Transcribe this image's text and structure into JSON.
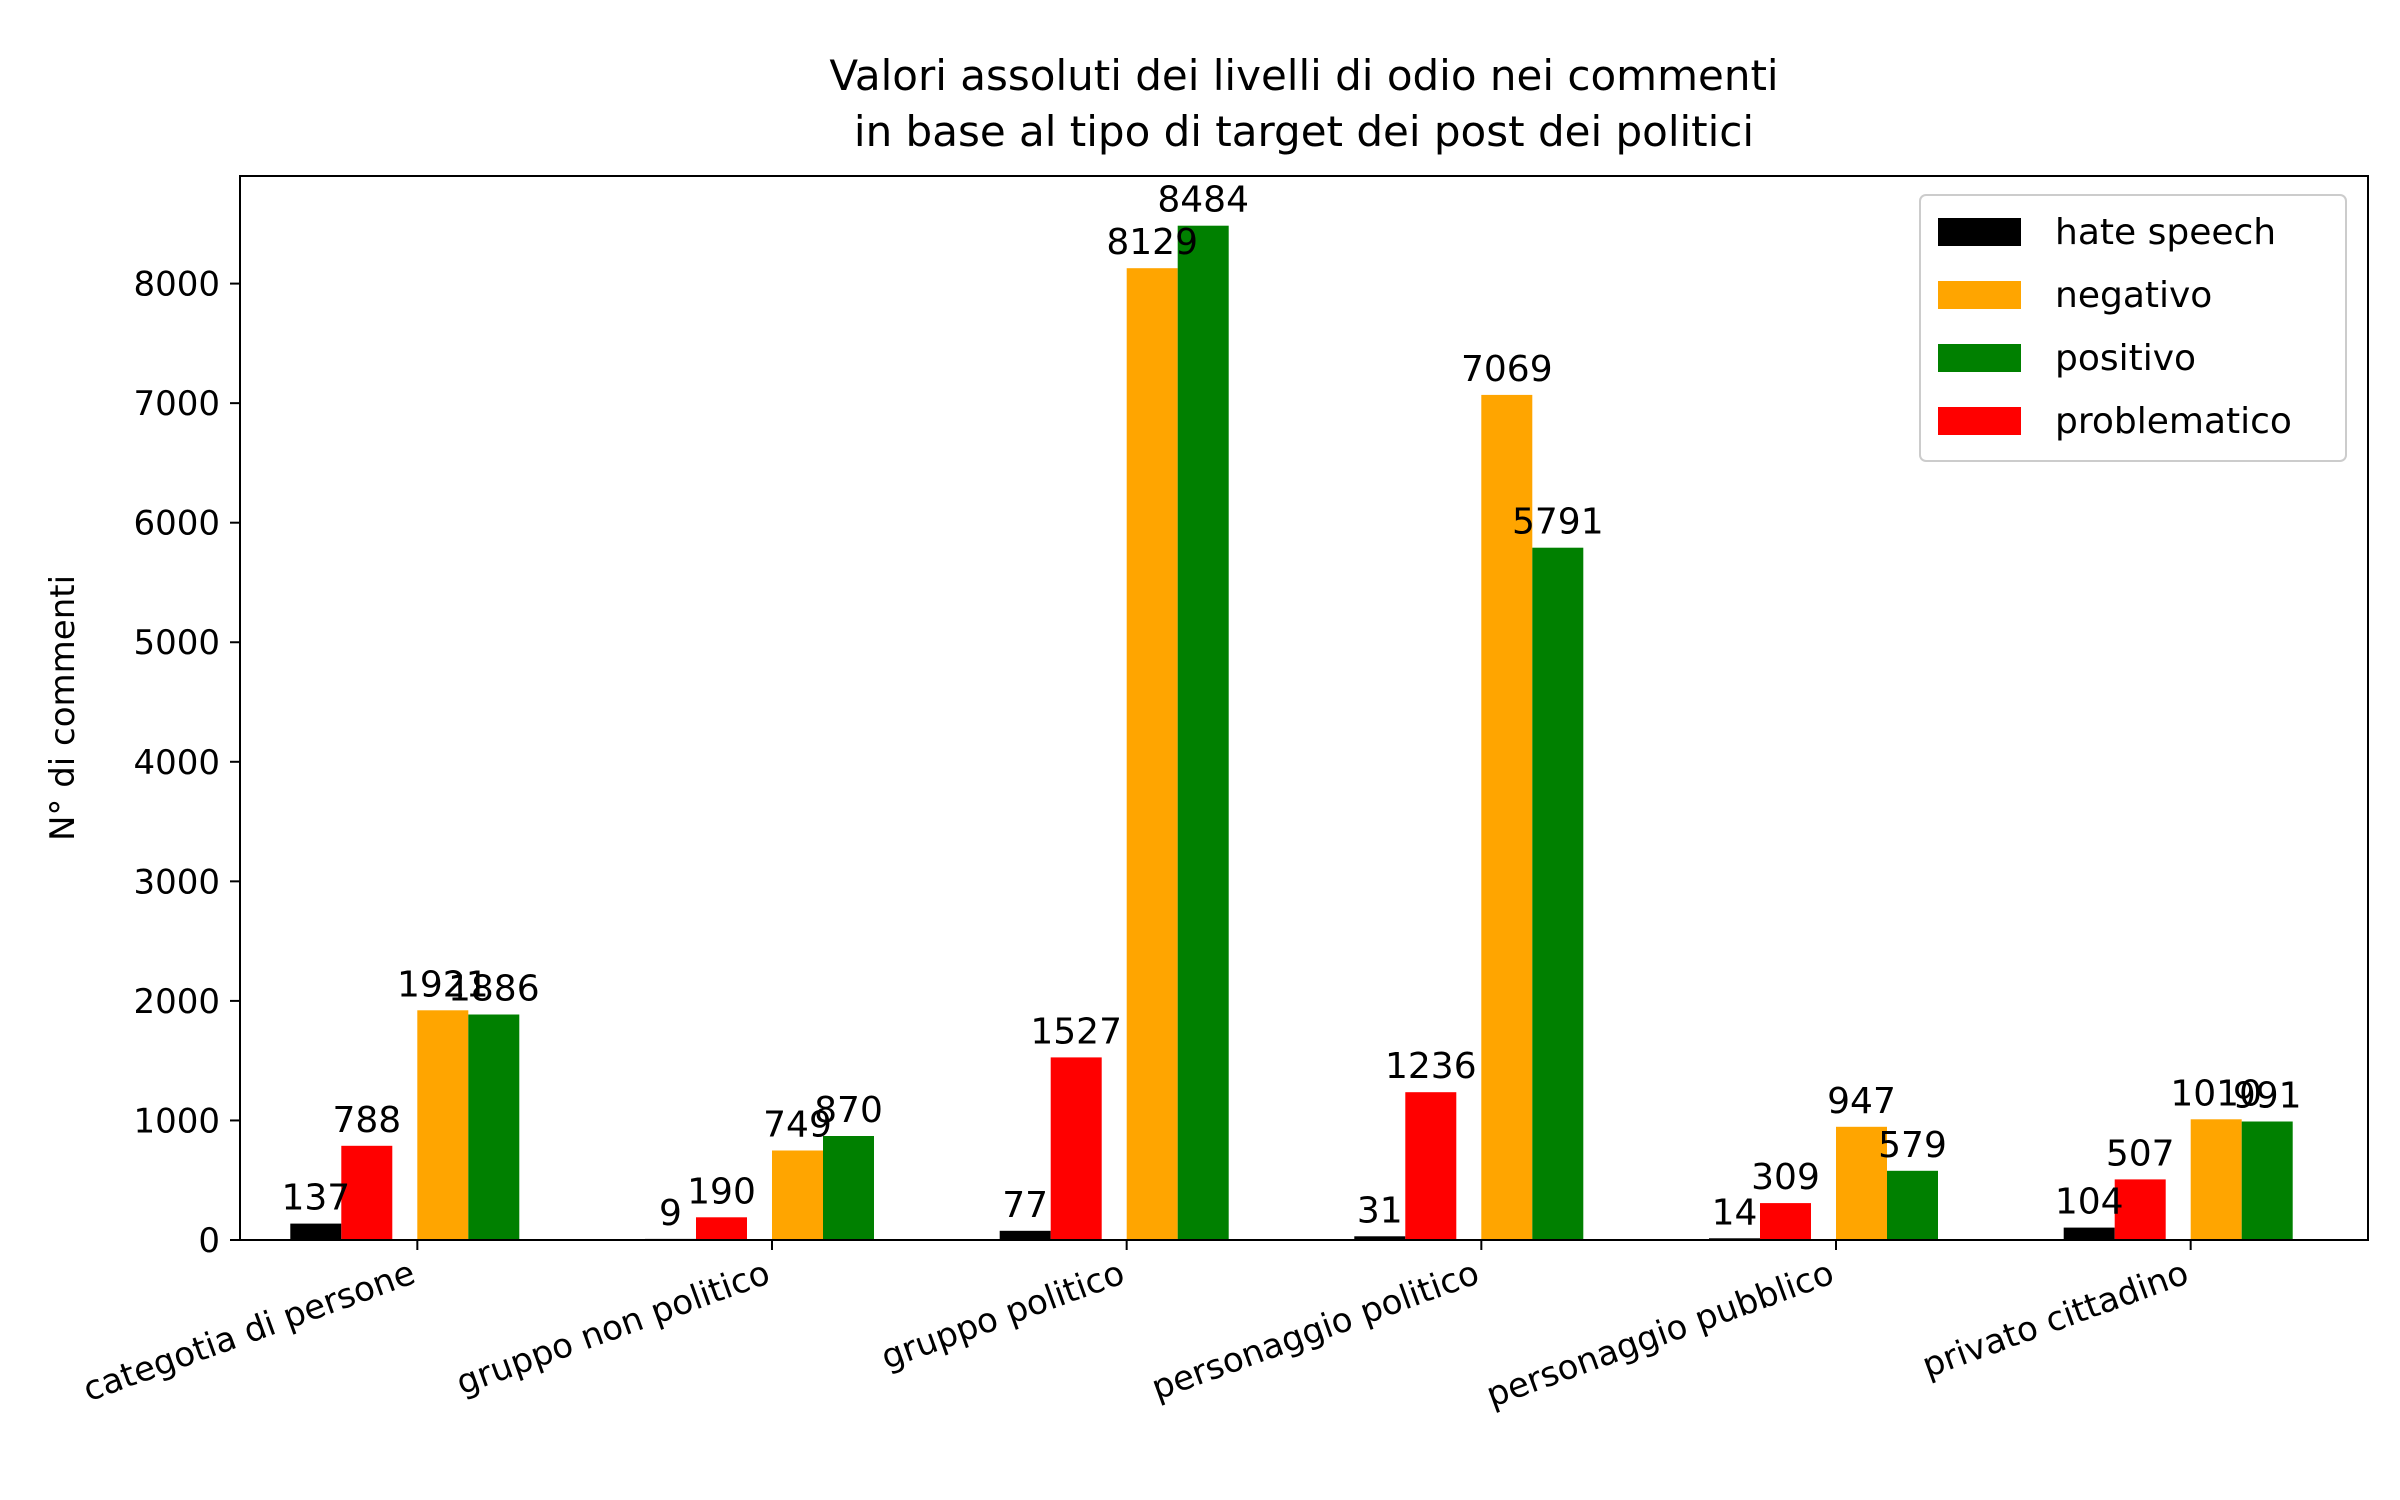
{
  "chart_data": {
    "type": "bar",
    "title_lines": [
      "Valori assoluti dei livelli di odio nei commenti",
      "in base al tipo di target dei post dei politici"
    ],
    "xlabel": "",
    "ylabel": "N° di commenti",
    "ylim": [
      0,
      8900
    ],
    "yticks": [
      0,
      1000,
      2000,
      3000,
      4000,
      5000,
      6000,
      7000,
      8000
    ],
    "grid": false,
    "legend_position": "top-right",
    "categories": [
      "categotia di persone",
      "gruppo non politico",
      "gruppo politico",
      "personaggio politico",
      "personaggio pubblico",
      "privato cittadino"
    ],
    "series": [
      {
        "name": "hate speech",
        "color": "#000000",
        "values": [
          137,
          9,
          77,
          31,
          14,
          104
        ]
      },
      {
        "name": "negativo",
        "color": "#ffa500",
        "values": [
          1921,
          749,
          8129,
          7069,
          947,
          1010
        ]
      },
      {
        "name": "positivo",
        "color": "#008000",
        "values": [
          1886,
          870,
          8484,
          5791,
          579,
          991
        ]
      },
      {
        "name": "problematico",
        "color": "#ff0000",
        "values": [
          788,
          190,
          1527,
          1236,
          309,
          507
        ]
      }
    ],
    "bar_order": [
      "hate speech",
      "problematico",
      "negativo",
      "positivo"
    ]
  }
}
